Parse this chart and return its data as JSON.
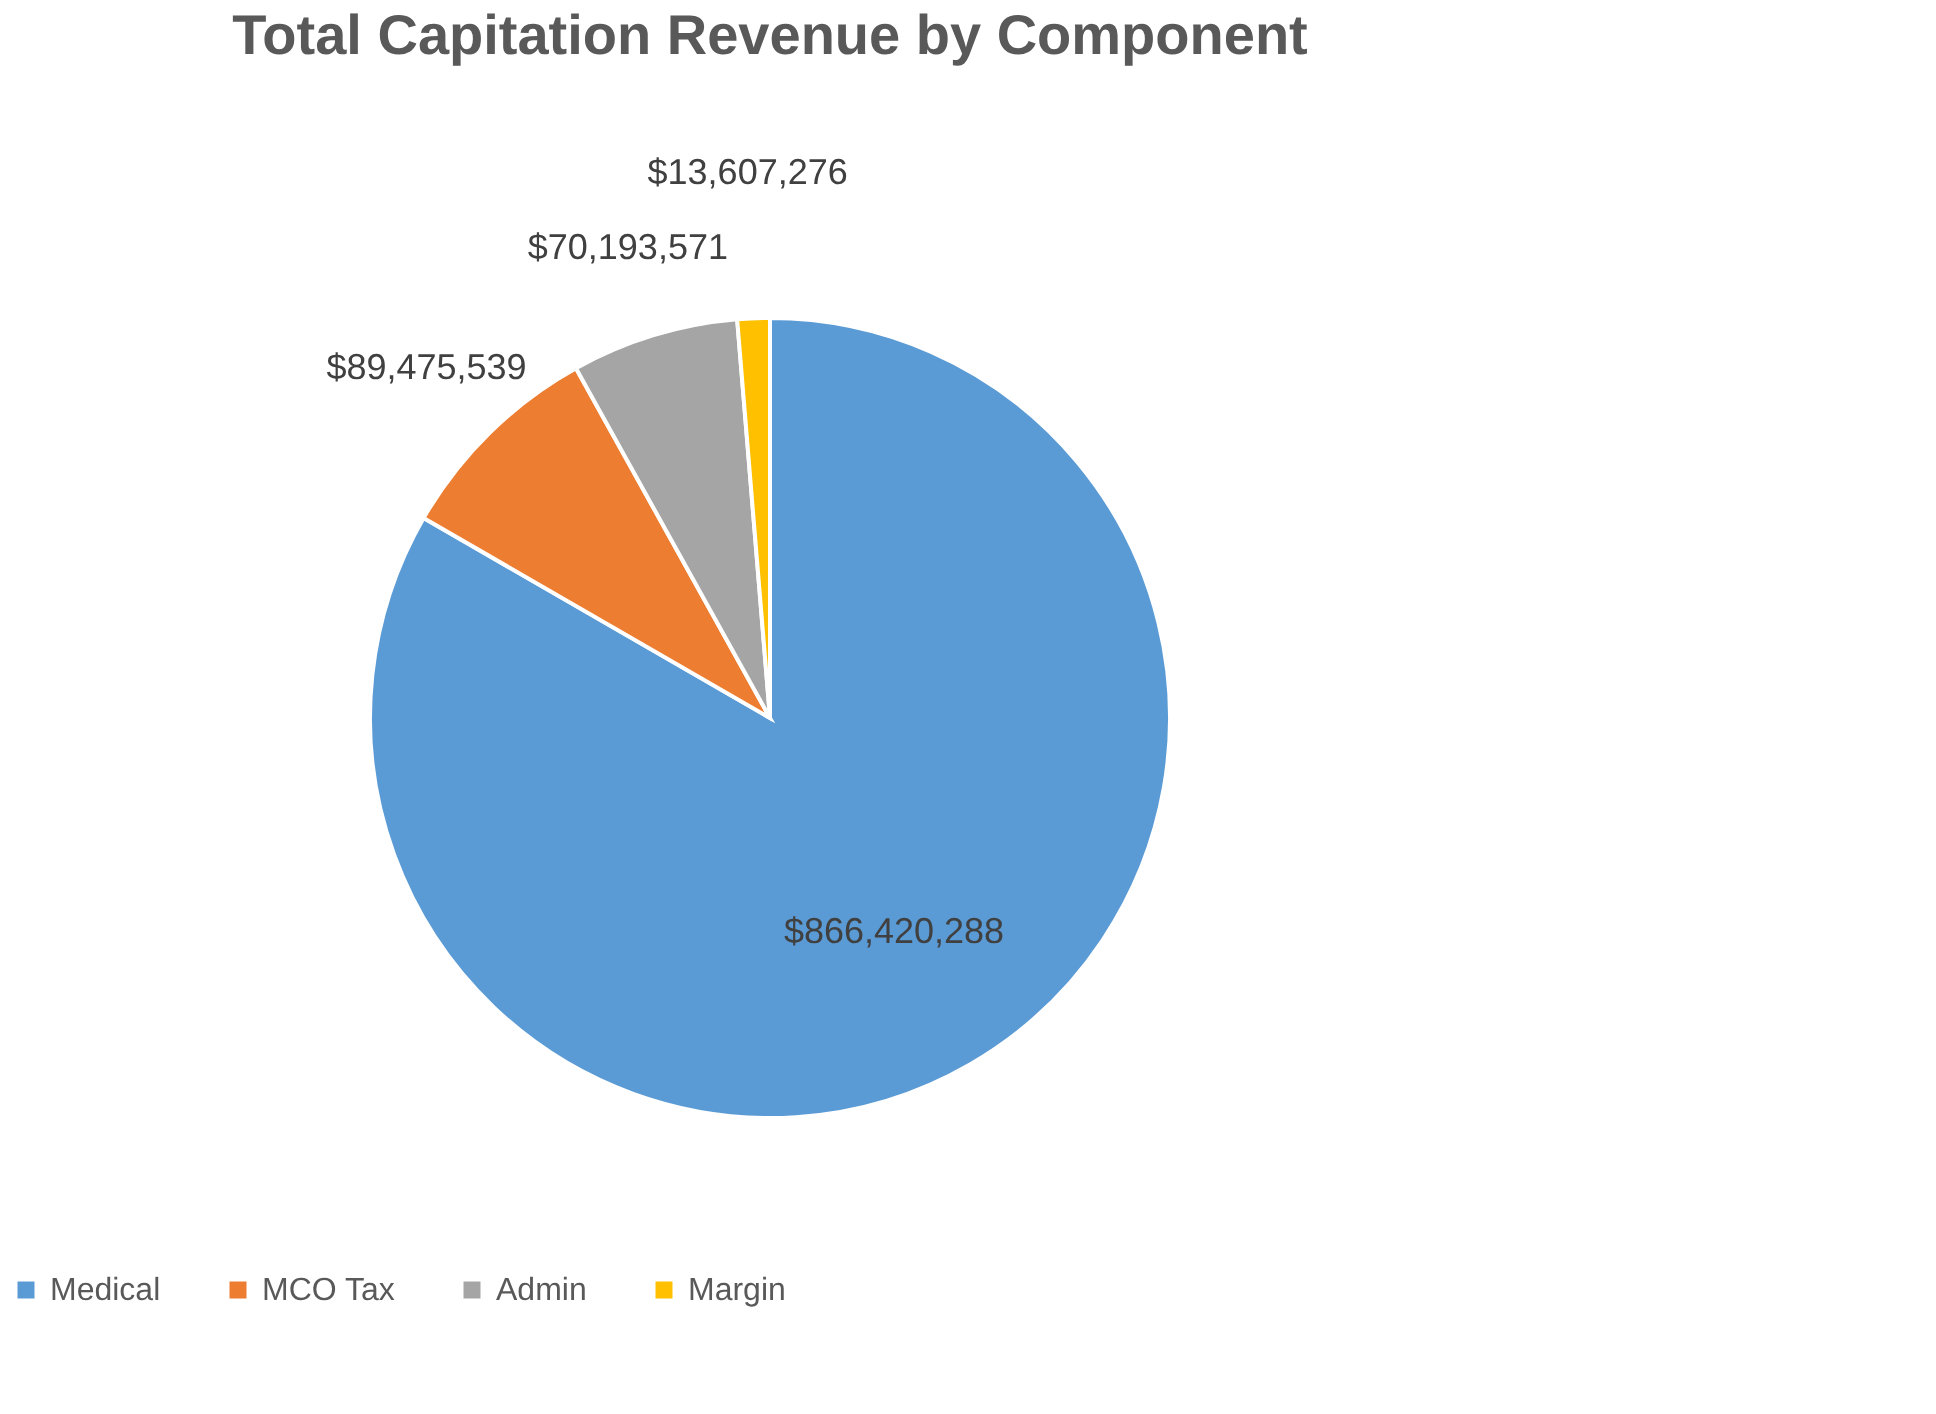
{
  "chart_data": {
    "type": "pie",
    "title": "Total Capitation Revenue by Component",
    "categories": [
      "Medical",
      "MCO Tax",
      "Admin",
      "Margin"
    ],
    "values": [
      866420288,
      89475539,
      70193571,
      13607276
    ],
    "colors": [
      "#5b9bd5",
      "#ed7d31",
      "#a5a5a5",
      "#ffc000"
    ],
    "value_labels": [
      "$866,420,288",
      "$89,475,539",
      "$70,193,571",
      "$13,607,276"
    ],
    "legend": "bottom"
  }
}
